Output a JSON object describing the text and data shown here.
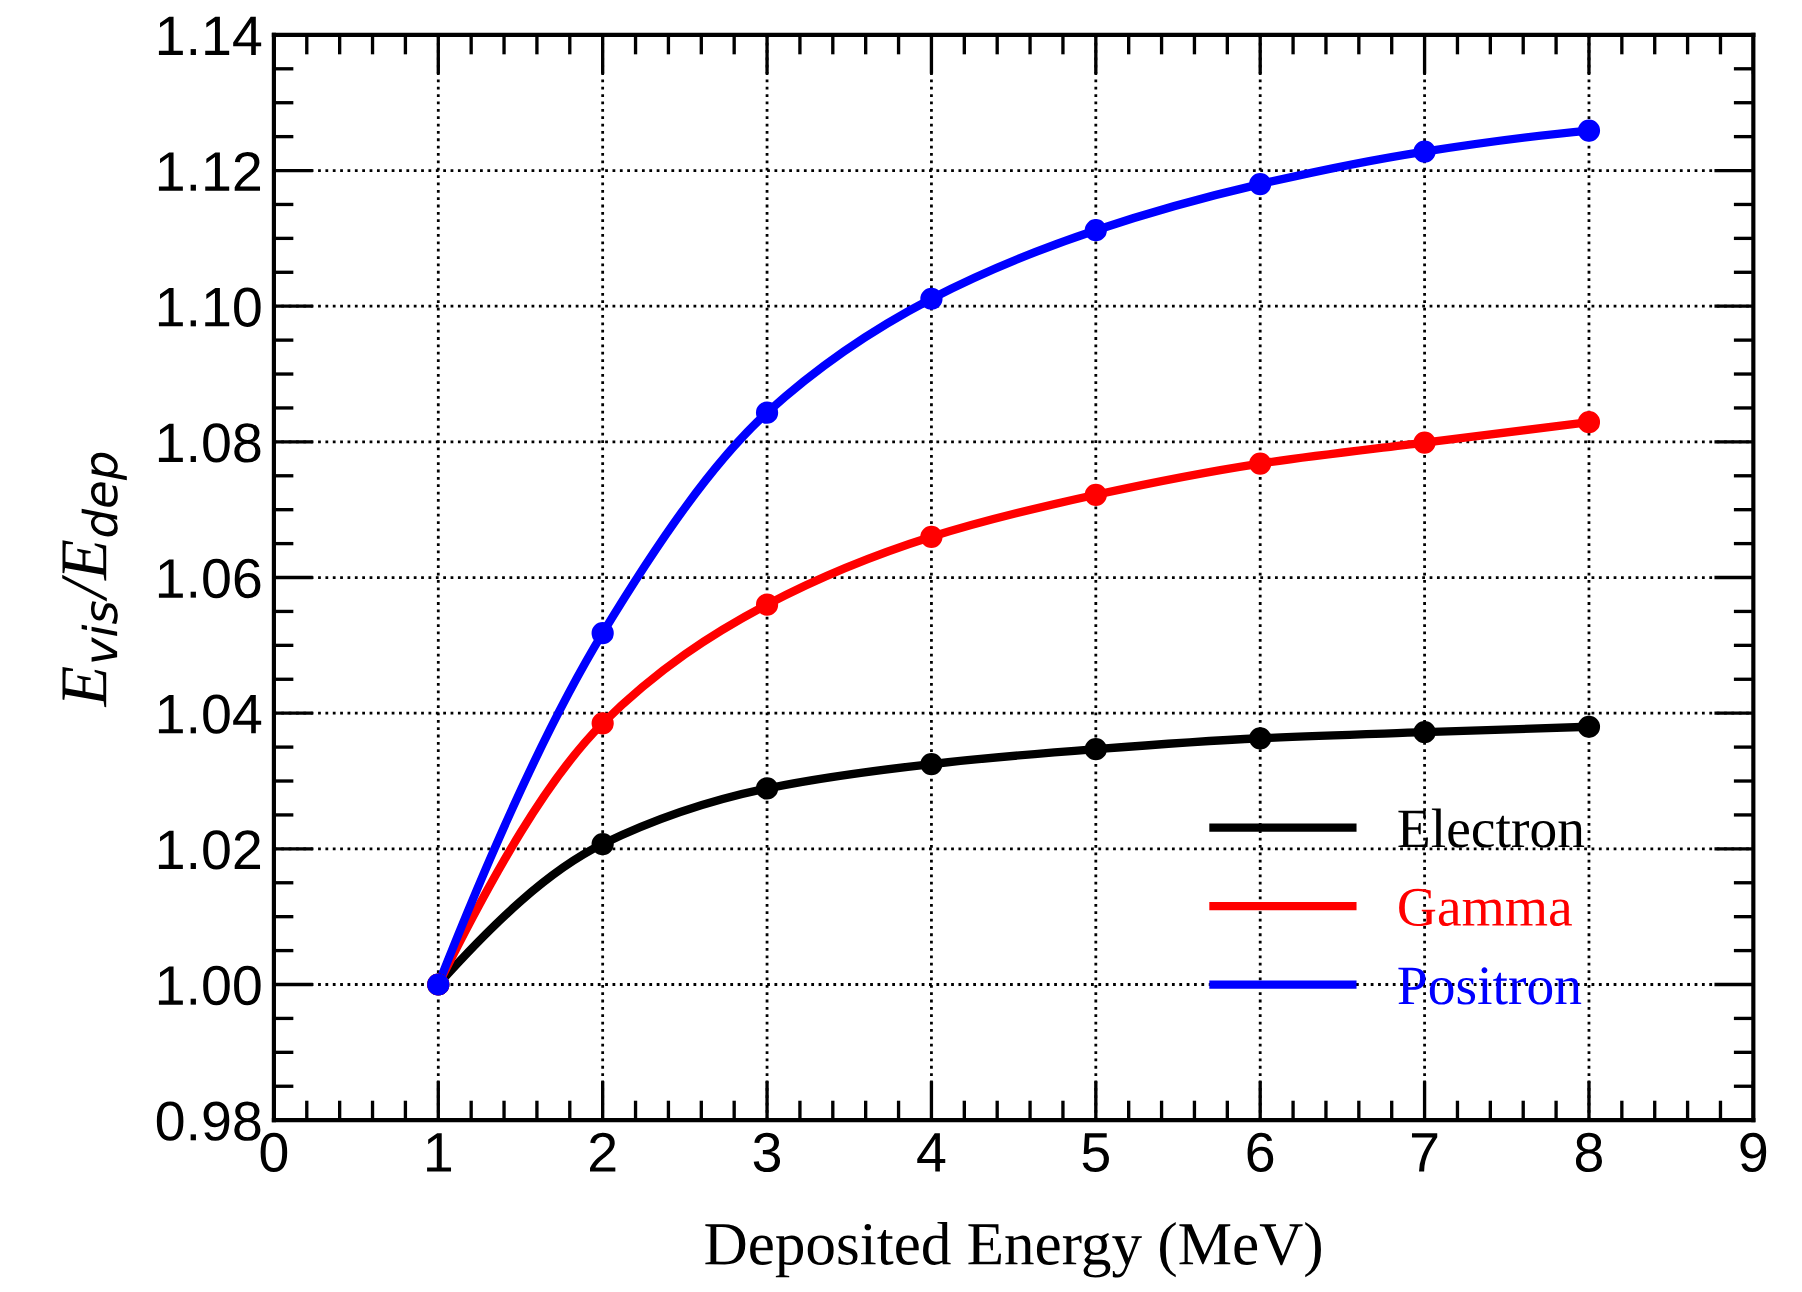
{
  "chart_data": {
    "type": "line",
    "xlabel": "Deposited Energy (MeV)",
    "ylabel": "E$_{vis}$/E$_{dep}$",
    "x": [
      1,
      2,
      3,
      4,
      5,
      6,
      7,
      8
    ],
    "series": [
      {
        "name": "Electron",
        "color": "#000000",
        "values": [
          1.0,
          1.0207,
          1.0289,
          1.0325,
          1.0347,
          1.0363,
          1.0372,
          1.038
        ]
      },
      {
        "name": "Gamma",
        "color": "#ff0000",
        "values": [
          1.0,
          1.0385,
          1.056,
          1.066,
          1.0722,
          1.0768,
          1.0799,
          1.0829
        ]
      },
      {
        "name": "Positron",
        "color": "#0000ff",
        "values": [
          1.0,
          1.0518,
          1.0843,
          1.1011,
          1.1112,
          1.118,
          1.1228,
          1.1259
        ]
      }
    ],
    "xlim": [
      0,
      9
    ],
    "xticks": [
      0,
      1,
      2,
      3,
      4,
      5,
      6,
      7,
      8,
      9
    ],
    "ylim": [
      0.98,
      1.14
    ],
    "yticks": [
      {
        "value": 0.98,
        "label": "0.98"
      },
      {
        "value": 1.0,
        "label": "1.00"
      },
      {
        "value": 1.02,
        "label": "1.02"
      },
      {
        "value": 1.04,
        "label": "1.04"
      },
      {
        "value": 1.06,
        "label": "1.06"
      },
      {
        "value": 1.08,
        "label": "1.08"
      },
      {
        "value": 1.1,
        "label": "1.10"
      },
      {
        "value": 1.12,
        "label": "1.12"
      },
      {
        "value": 1.14,
        "label": "1.14"
      }
    ],
    "grid": true,
    "legend": "bottom right",
    "marker": "circle",
    "line_style": "solid"
  }
}
